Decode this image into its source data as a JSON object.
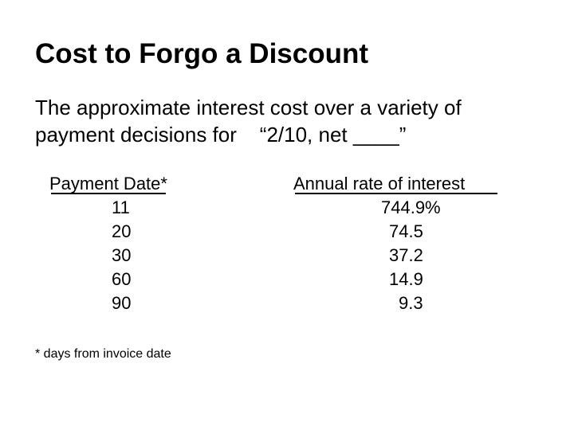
{
  "title": "Cost to Forgo a Discount",
  "subtitle": {
    "line1": "The approximate interest cost over a variety of",
    "line2": "payment decisions for    “2/10, net ____”"
  },
  "table": {
    "payment_header": "Payment Date*",
    "rate_header": "Annual rate of interest",
    "rows": [
      {
        "payment_date": "11",
        "rate": "744.9%"
      },
      {
        "payment_date": "20",
        "rate": "74.5"
      },
      {
        "payment_date": "30",
        "rate": "37.2"
      },
      {
        "payment_date": "60",
        "rate": "14.9"
      },
      {
        "payment_date": "90",
        "rate": "9.3"
      }
    ]
  },
  "footnote": "* days from invoice date"
}
